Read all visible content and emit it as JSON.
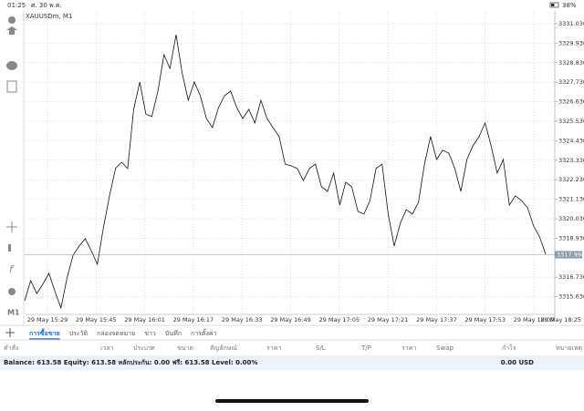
{
  "status_bar": {
    "time": "01:25",
    "date": "ศ. 30 พ.ค.",
    "battery": "38%"
  },
  "symbol": "XAUUSDm, M1",
  "timeframe": "M1",
  "chart_data": {
    "type": "line",
    "color": "#111111",
    "values": [
      3315.4,
      3316.53,
      3315.81,
      3316.33,
      3316.95,
      3315.92,
      3314.99,
      3316.69,
      3317.97,
      3318.49,
      3318.9,
      3318.23,
      3317.46,
      3319.52,
      3321.32,
      3322.86,
      3323.22,
      3322.86,
      3326.2,
      3327.74,
      3325.94,
      3325.79,
      3327.23,
      3329.28,
      3328.51,
      3330.41,
      3328.25,
      3326.71,
      3327.74,
      3326.97,
      3325.68,
      3325.17,
      3326.3,
      3326.97,
      3327.23,
      3326.3,
      3325.68,
      3326.2,
      3325.43,
      3326.71,
      3325.68,
      3325.17,
      3324.66,
      3323.11,
      3323.01,
      3322.86,
      3322.19,
      3322.86,
      3323.11,
      3321.83,
      3321.57,
      3322.6,
      3320.8,
      3322.09,
      3321.83,
      3320.44,
      3320.29,
      3321.06,
      3322.86,
      3323.11,
      3320.29,
      3318.49,
      3319.77,
      3320.54,
      3320.29,
      3320.96,
      3323.11,
      3324.66,
      3323.37,
      3323.89,
      3323.73,
      3322.86,
      3321.57,
      3323.37,
      3324.14,
      3324.66,
      3325.43,
      3324.14,
      3322.6,
      3323.37,
      3320.8,
      3321.32,
      3321.06,
      3320.65,
      3319.62,
      3319.0,
      3318.03
    ],
    "ylim": [
      3314.63,
      3331.75
    ],
    "yticks": [
      {
        "value": 3331.03,
        "label": "3331.030"
      },
      {
        "value": 3329.93,
        "label": "3329.930"
      },
      {
        "value": 3328.83,
        "label": "3328.830"
      },
      {
        "value": 3327.73,
        "label": "3327.730"
      },
      {
        "value": 3326.63,
        "label": "3326.630"
      },
      {
        "value": 3325.53,
        "label": "3325.530"
      },
      {
        "value": 3324.43,
        "label": "3324.430"
      },
      {
        "value": 3323.33,
        "label": "3323.330"
      },
      {
        "value": 3322.23,
        "label": "3322.230"
      },
      {
        "value": 3321.13,
        "label": "3321.130"
      },
      {
        "value": 3320.03,
        "label": "3320.030"
      },
      {
        "value": 3318.93,
        "label": "3318.930"
      },
      {
        "value": 3316.73,
        "label": "3316.730"
      },
      {
        "value": 3315.63,
        "label": "3315.630"
      }
    ],
    "xticks": [
      "29 May 15:29",
      "29 May 15:45",
      "29 May 16:01",
      "29 May 16:17",
      "29 May 16:33",
      "29 May 16:49",
      "29 May 17:05",
      "29 May 17:21",
      "29 May 17:37",
      "29 May 17:53",
      "29 May 18:09",
      "29 May 18:25"
    ],
    "price_line": 3317.998,
    "grid": true
  },
  "tabs": [
    "การซื้อขาย",
    "ประวัติ",
    "กล่องจดหมาย",
    "ข่าว",
    "บันทึก",
    "การตั้งค่า"
  ],
  "columns": [
    "คำสั่ง",
    "เวลา",
    "ประเภท",
    "ขนาด",
    "สัญลักษณ์",
    "ราคา",
    "S/L",
    "T/P",
    "ราคา",
    "Swap",
    "กำไร",
    "หมายเหตุ"
  ],
  "summary": {
    "text": "Balance: 613.58 Equity: 613.58 หลักประกัน: 0.00 ฟรี: 613.58 Level: 0.00%",
    "total": "0.00 USD"
  }
}
